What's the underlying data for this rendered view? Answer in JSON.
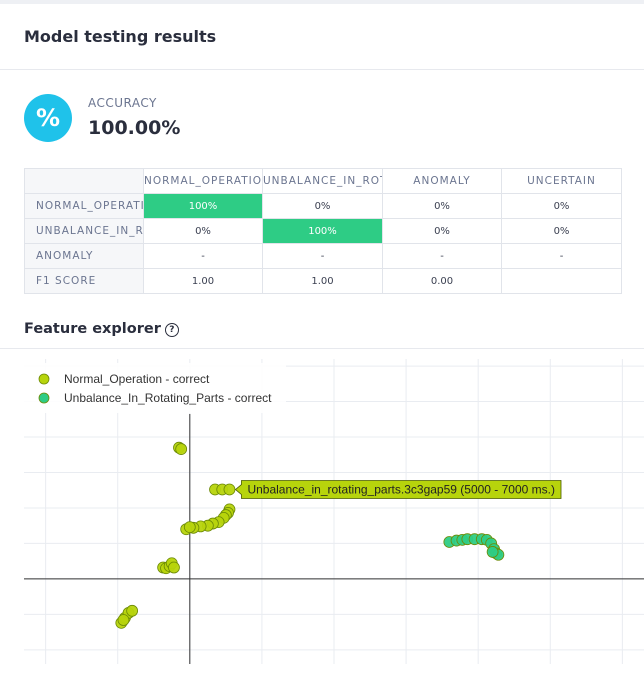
{
  "page_title": "Model testing results",
  "accuracy": {
    "icon": "percent-icon",
    "glyph": "%",
    "label": "ACCURACY",
    "value": "100.00%",
    "icon_color": "#1fc2ea"
  },
  "confusion_matrix": {
    "columns": [
      "NORMAL_OPERATION",
      "UNBALANCE_IN_ROTATING_PARTS",
      "ANOMALY",
      "UNCERTAIN"
    ],
    "rows": [
      {
        "label": "NORMAL_OPERATION",
        "cells": [
          "100%",
          "0%",
          "0%",
          "0%"
        ]
      },
      {
        "label": "UNBALANCE_IN_ROTATING_PARTS",
        "cells": [
          "0%",
          "100%",
          "0%",
          "0%"
        ]
      },
      {
        "label": "ANOMALY",
        "cells": [
          "-",
          "-",
          "-",
          "-"
        ]
      },
      {
        "label": "F1 SCORE",
        "cells": [
          "1.00",
          "1.00",
          "0.00",
          ""
        ]
      }
    ],
    "highlight_color": "#2ecc85"
  },
  "feature_explorer": {
    "title": "Feature explorer",
    "help_icon": "help-circle-icon",
    "help_glyph": "?"
  },
  "chart_data": {
    "type": "scatter",
    "title": "",
    "xlabel": "",
    "ylabel": "",
    "grid": true,
    "legend_position": "top-left",
    "xlim": [
      -2.3,
      6.3
    ],
    "ylim": [
      -1.2,
      3.1
    ],
    "series": [
      {
        "name": "Normal_Operation - correct",
        "color": "#b7d40c",
        "points": [
          [
            -0.15,
            1.85
          ],
          [
            -0.12,
            1.83
          ],
          [
            0.35,
            1.26
          ],
          [
            0.45,
            1.26
          ],
          [
            0.55,
            1.26
          ],
          [
            0.55,
            0.98
          ],
          [
            0.53,
            0.93
          ],
          [
            0.5,
            0.9
          ],
          [
            0.47,
            0.86
          ],
          [
            0.4,
            0.8
          ],
          [
            0.32,
            0.78
          ],
          [
            0.25,
            0.75
          ],
          [
            0.15,
            0.74
          ],
          [
            0.05,
            0.72
          ],
          [
            -0.05,
            0.7
          ],
          [
            0.0,
            0.73
          ],
          [
            -0.37,
            0.16
          ],
          [
            -0.33,
            0.15
          ],
          [
            -0.28,
            0.18
          ],
          [
            -0.25,
            0.22
          ],
          [
            -0.22,
            0.16
          ],
          [
            -0.95,
            -0.62
          ],
          [
            -0.9,
            -0.55
          ],
          [
            -0.85,
            -0.48
          ],
          [
            -0.92,
            -0.58
          ],
          [
            -0.8,
            -0.45
          ]
        ]
      },
      {
        "name": "Unbalance_In_Rotating_Parts - correct",
        "color": "#2ecc85",
        "points": [
          [
            3.6,
            0.52
          ],
          [
            3.7,
            0.54
          ],
          [
            3.78,
            0.55
          ],
          [
            3.85,
            0.56
          ],
          [
            3.95,
            0.56
          ],
          [
            4.05,
            0.56
          ],
          [
            4.12,
            0.55
          ],
          [
            4.18,
            0.5
          ],
          [
            4.22,
            0.42
          ],
          [
            4.25,
            0.36
          ],
          [
            4.28,
            0.34
          ],
          [
            4.2,
            0.38
          ]
        ]
      }
    ],
    "tooltip": {
      "text": "Unbalance_in_rotating_parts.3c3gap59 (5000 - 7000 ms.)",
      "x": 0.55,
      "y": 1.26
    }
  }
}
